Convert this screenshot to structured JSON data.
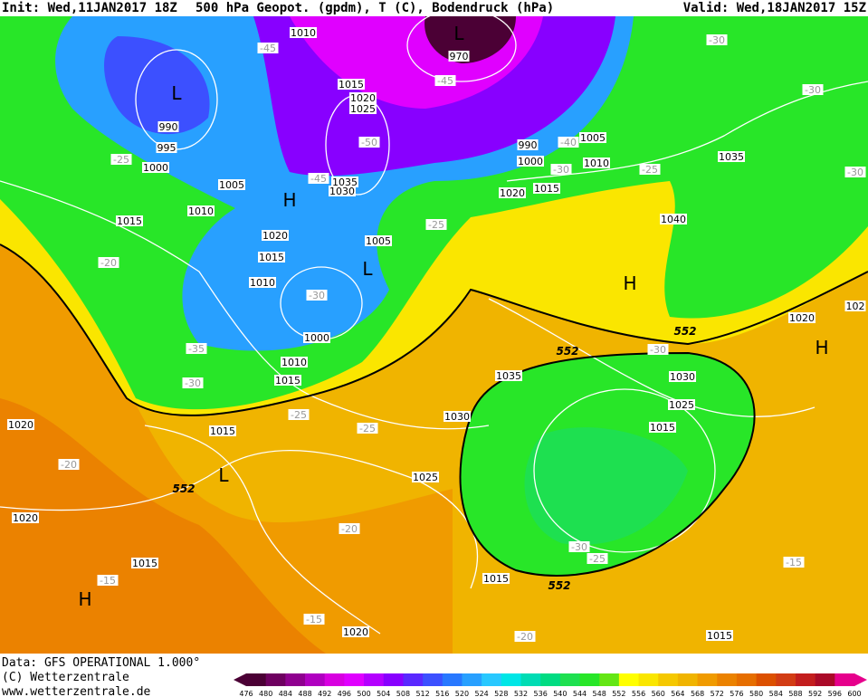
{
  "header": {
    "init": "Init: Wed,11JAN2017  18Z",
    "title": "500 hPa Geopot. (gpdm), T (C), Bodendruck (hPa)",
    "valid": "Valid: Wed,18JAN2017  15Z"
  },
  "footer": {
    "source": "Data: GFS OPERATIONAL 1.000°",
    "copyright": "(C) Wetterzentrale",
    "url": "www.wetterzentrale.de"
  },
  "colorbar": {
    "levels": [
      476,
      480,
      484,
      488,
      492,
      496,
      500,
      504,
      508,
      512,
      516,
      520,
      524,
      528,
      532,
      536,
      540,
      544,
      548,
      552,
      556,
      560,
      564,
      568,
      572,
      576,
      580,
      584,
      588,
      592,
      596,
      600
    ],
    "colors": [
      "#4b0035",
      "#6e0060",
      "#8f008f",
      "#b000c0",
      "#d800e0",
      "#e000ff",
      "#b400ff",
      "#8800ff",
      "#5a28ff",
      "#3c50ff",
      "#2878ff",
      "#28a0ff",
      "#28c8ff",
      "#00e6e6",
      "#00dcb4",
      "#00dc82",
      "#1ee050",
      "#28e628",
      "#64e614",
      "#ffff00",
      "#fae600",
      "#f5c800",
      "#f0b400",
      "#f09b00",
      "#eb8200",
      "#e66e00",
      "#dc5000",
      "#d23c14",
      "#c31e1e",
      "#aa0a28",
      "#e6008c"
    ]
  },
  "labels": [
    "1010",
    "-45",
    "L",
    "970",
    "-30",
    "L",
    "990",
    "995",
    "-25",
    "1000",
    "1015",
    "1020",
    "1025",
    "-50",
    "-45",
    "-40",
    "1005",
    "990",
    "1000",
    "-30",
    "1010",
    "-25",
    "1035",
    "-30",
    "-30",
    "1005",
    "H",
    "-45",
    "1035",
    "1030",
    "1020",
    "1015",
    "1010",
    "1015",
    "-25",
    "1040",
    "1020",
    "1005",
    "L",
    "1015",
    "-20",
    "1010",
    "H",
    "-30",
    "1000",
    "552",
    "1020",
    "102",
    "-35",
    "552",
    "-30",
    "H",
    "1010",
    "1015",
    "-30",
    "1035",
    "1030",
    "1025",
    "-25",
    "1030",
    "1015",
    "1020",
    "1015",
    "-25",
    "-20",
    "L",
    "552",
    "1025",
    "1020",
    "-20",
    "-30",
    "-25",
    "-15",
    "1015",
    "-15",
    "1015",
    "552",
    "H",
    "-15",
    "1020",
    "-20",
    "1015"
  ]
}
